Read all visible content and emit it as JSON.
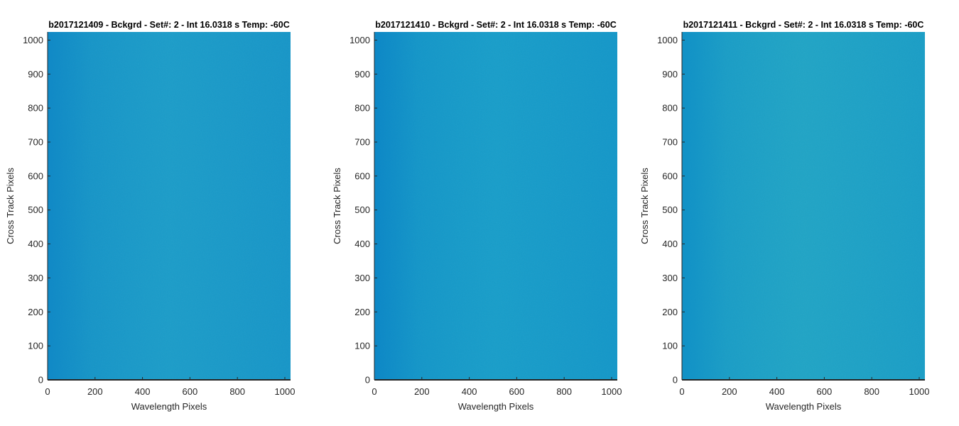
{
  "chart_data": [
    {
      "type": "heatmap",
      "title": "b2017121409 - Bckgrd - Set#: 2 - Int 16.0318 s Temp: -60C",
      "xlabel": "Wavelength Pixels",
      "ylabel": "Cross Track Pixels",
      "xlim": [
        0,
        1024
      ],
      "ylim": [
        0,
        1024
      ],
      "xticks": [
        0,
        200,
        400,
        600,
        800,
        1000
      ],
      "yticks": [
        0,
        100,
        200,
        300,
        400,
        500,
        600,
        700,
        800,
        900,
        1000
      ],
      "colors": {
        "base": "#1699c8",
        "light": "#27a9cd",
        "dark": "#0f87c6"
      },
      "grid": false
    },
    {
      "type": "heatmap",
      "title": "b2017121410 - Bckgrd - Set#: 2 - Int 16.0318 s Temp: -60C",
      "xlabel": "Wavelength Pixels",
      "ylabel": "Cross Track Pixels",
      "xlim": [
        0,
        1024
      ],
      "ylim": [
        0,
        1024
      ],
      "xticks": [
        0,
        200,
        400,
        600,
        800,
        1000
      ],
      "yticks": [
        0,
        100,
        200,
        300,
        400,
        500,
        600,
        700,
        800,
        900,
        1000
      ],
      "colors": {
        "base": "#139bc9",
        "light": "#22a6cc",
        "dark": "#0c85c6"
      },
      "grid": false
    },
    {
      "type": "heatmap",
      "title": "b2017121411 - Bckgrd - Set#: 2 - Int 16.0318 s Temp: -60C",
      "xlabel": "Wavelength Pixels",
      "ylabel": "Cross Track Pixels",
      "xlim": [
        0,
        1024
      ],
      "ylim": [
        0,
        1024
      ],
      "xticks": [
        0,
        200,
        400,
        600,
        800,
        1000
      ],
      "yticks": [
        0,
        100,
        200,
        300,
        400,
        500,
        600,
        700,
        800,
        900,
        1000
      ],
      "colors": {
        "base": "#1aa1c6",
        "light": "#2eb0c3",
        "dark": "#0f8fc6"
      },
      "grid": false
    }
  ]
}
